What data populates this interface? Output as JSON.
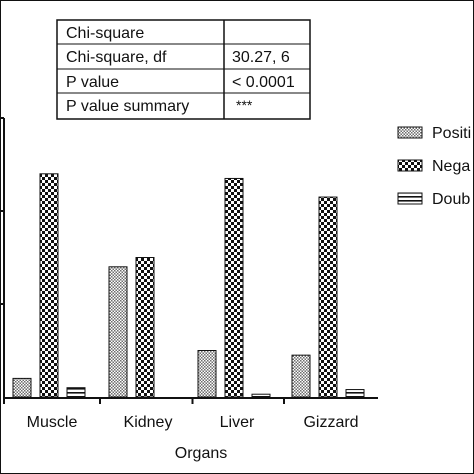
{
  "chart_data": {
    "type": "bar",
    "xlabel": "Organs",
    "ylabel": "",
    "ylim": [
      0,
      30
    ],
    "categories": [
      "Muscle",
      "Kidney",
      "Liver",
      "Gizzard"
    ],
    "series": [
      {
        "name": "Positi",
        "values": [
          2,
          14,
          5,
          4.5
        ]
      },
      {
        "name": "Nega",
        "values": [
          24,
          15,
          23.5,
          21.5
        ]
      },
      {
        "name": "Doub",
        "values": [
          1,
          0,
          0.3,
          0.8
        ]
      }
    ],
    "legend_position": "right",
    "grid": false
  },
  "stats_table": {
    "header": "Chi-square",
    "rows": [
      {
        "label": "Chi-square, df",
        "value": "30.27, 6"
      },
      {
        "label": "P value",
        "value": "< 0.0001"
      },
      {
        "label": "P value summary",
        "value": "***"
      }
    ]
  },
  "colors": {
    "axis": "#111111",
    "positive_fill": "#9a9a9a",
    "negative_fill": "#1a1a1a",
    "double_fill": "#ffffff"
  }
}
